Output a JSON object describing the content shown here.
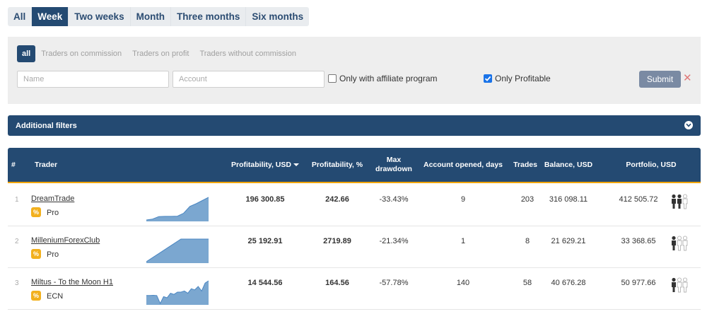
{
  "periods": [
    {
      "label": "All",
      "active": false
    },
    {
      "label": "Week",
      "active": true
    },
    {
      "label": "Two weeks",
      "active": false
    },
    {
      "label": "Month",
      "active": false
    },
    {
      "label": "Three months",
      "active": false
    },
    {
      "label": "Six months",
      "active": false
    }
  ],
  "filters": {
    "types": [
      {
        "label": "all",
        "active": true
      },
      {
        "label": "Traders on commission",
        "active": false
      },
      {
        "label": "Traders on profit",
        "active": false
      },
      {
        "label": "Traders without commission",
        "active": false
      }
    ],
    "name_placeholder": "Name",
    "account_placeholder": "Account",
    "affiliate_label": "Only with affiliate program",
    "affiliate_checked": false,
    "profitable_label": "Only Profitable",
    "profitable_checked": true,
    "submit_label": "Submit",
    "clear_symbol": "✕"
  },
  "additional_filters": {
    "label": "Additional filters",
    "icon": "chevron-down-icon"
  },
  "table": {
    "columns": {
      "num": "#",
      "trader": "Trader",
      "profit_usd": "Profitability, USD",
      "profit_pct": "Profitability, %",
      "drawdown": "Max drawdown",
      "opened": "Account opened, days",
      "trades": "Trades",
      "balance": "Balance, USD",
      "portfolio": "Portfolio, USD"
    },
    "sort_column": "profit_usd",
    "rows": [
      {
        "num": "1",
        "name": "DreamTrade",
        "badge": "%",
        "type": "Pro",
        "profit_usd": "196 300.85",
        "profit_pct": "242.66",
        "drawdown": "-33.43%",
        "opened": "9",
        "trades": "203",
        "balance": "316 098.11",
        "portfolio": "412 505.72",
        "investors_filled": 2,
        "spark": [
          0.0,
          0.04,
          0.15,
          0.16,
          0.16,
          0.17,
          0.3,
          0.6,
          0.72,
          0.86,
          1.0
        ]
      },
      {
        "num": "2",
        "name": "MilleniumForexClub",
        "badge": "%",
        "type": "Pro",
        "profit_usd": "25 192.91",
        "profit_pct": "2719.89",
        "drawdown": "-21.34%",
        "opened": "1",
        "trades": "8",
        "balance": "21 629.21",
        "portfolio": "33 368.65",
        "investors_filled": 1,
        "spark": [
          0.0,
          0.2,
          0.4,
          0.6,
          0.8,
          1.0,
          1.0,
          1.0,
          1.0,
          1.0
        ]
      },
      {
        "num": "3",
        "name": "Miltus - To the Moon H1",
        "badge": "%",
        "type": "ECN",
        "profit_usd": "14 544.56",
        "profit_pct": "164.56",
        "drawdown": "-57.78%",
        "opened": "140",
        "trades": "58",
        "balance": "40 676.28",
        "portfolio": "50 977.66",
        "investors_filled": 1,
        "spark": [
          0.35,
          0.35,
          0.36,
          0.35,
          0.0,
          0.3,
          0.25,
          0.45,
          0.4,
          0.5,
          0.5,
          0.55,
          0.45,
          0.65,
          0.6,
          0.75,
          0.55,
          0.9,
          1.0
        ]
      }
    ]
  },
  "colors": {
    "navy": "#244a72",
    "accent": "#f0a500",
    "spark_fill": "#7ba7d0",
    "spark_line": "#4a86c2",
    "badge": "#f2b01e"
  }
}
